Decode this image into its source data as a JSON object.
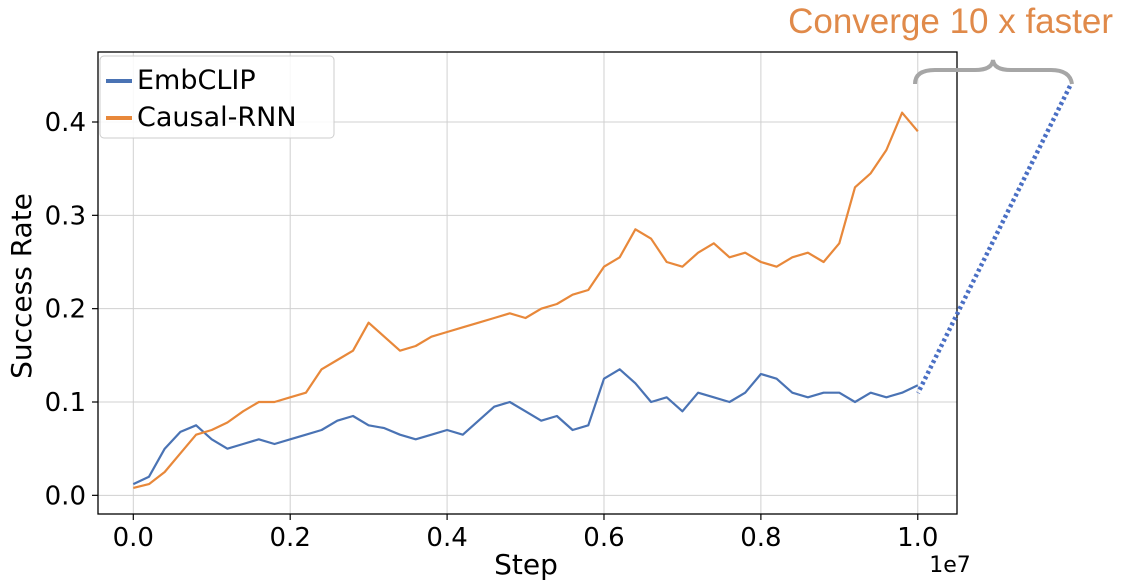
{
  "chart_data": {
    "type": "line",
    "title": "",
    "xlabel": "Step",
    "ylabel": "Success Rate",
    "x_offset_label": "1e7",
    "xlim": [
      -0.045,
      1.05
    ],
    "ylim": [
      -0.02,
      0.475
    ],
    "grid": true,
    "legend_position": "top-left",
    "x_ticks": [
      {
        "value": 0.0,
        "label": "0.0"
      },
      {
        "value": 0.2,
        "label": "0.2"
      },
      {
        "value": 0.4,
        "label": "0.4"
      },
      {
        "value": 0.6,
        "label": "0.6"
      },
      {
        "value": 0.8,
        "label": "0.8"
      },
      {
        "value": 1.0,
        "label": "1.0"
      }
    ],
    "y_ticks": [
      {
        "value": 0.0,
        "label": "0.0"
      },
      {
        "value": 0.1,
        "label": "0.1"
      },
      {
        "value": 0.2,
        "label": "0.2"
      },
      {
        "value": 0.3,
        "label": "0.3"
      },
      {
        "value": 0.4,
        "label": "0.4"
      }
    ],
    "series": [
      {
        "name": "EmbCLIP",
        "color": "#4a73b4",
        "x": [
          0.0,
          0.02,
          0.04,
          0.06,
          0.08,
          0.1,
          0.12,
          0.14,
          0.16,
          0.18,
          0.2,
          0.22,
          0.24,
          0.26,
          0.28,
          0.3,
          0.32,
          0.34,
          0.36,
          0.38,
          0.4,
          0.42,
          0.44,
          0.46,
          0.48,
          0.5,
          0.52,
          0.54,
          0.56,
          0.58,
          0.6,
          0.62,
          0.64,
          0.66,
          0.68,
          0.7,
          0.72,
          0.74,
          0.76,
          0.78,
          0.8,
          0.82,
          0.84,
          0.86,
          0.88,
          0.9,
          0.92,
          0.94,
          0.96,
          0.98,
          1.0
        ],
        "y": [
          0.012,
          0.02,
          0.05,
          0.068,
          0.075,
          0.06,
          0.05,
          0.055,
          0.06,
          0.055,
          0.06,
          0.065,
          0.07,
          0.08,
          0.085,
          0.075,
          0.072,
          0.065,
          0.06,
          0.065,
          0.07,
          0.065,
          0.08,
          0.095,
          0.1,
          0.09,
          0.08,
          0.085,
          0.07,
          0.075,
          0.125,
          0.135,
          0.12,
          0.1,
          0.105,
          0.09,
          0.11,
          0.105,
          0.1,
          0.11,
          0.13,
          0.125,
          0.11,
          0.105,
          0.11,
          0.11,
          0.1,
          0.11,
          0.105,
          0.11,
          0.118
        ]
      },
      {
        "name": "Causal-RNN",
        "color": "#e8883a",
        "x": [
          0.0,
          0.02,
          0.04,
          0.06,
          0.08,
          0.1,
          0.12,
          0.14,
          0.16,
          0.18,
          0.2,
          0.22,
          0.24,
          0.26,
          0.28,
          0.3,
          0.32,
          0.34,
          0.36,
          0.38,
          0.4,
          0.42,
          0.44,
          0.46,
          0.48,
          0.5,
          0.52,
          0.54,
          0.56,
          0.58,
          0.6,
          0.62,
          0.64,
          0.66,
          0.68,
          0.7,
          0.72,
          0.74,
          0.76,
          0.78,
          0.8,
          0.82,
          0.84,
          0.86,
          0.88,
          0.9,
          0.92,
          0.94,
          0.96,
          0.98,
          1.0
        ],
        "y": [
          0.008,
          0.012,
          0.025,
          0.045,
          0.065,
          0.07,
          0.078,
          0.09,
          0.1,
          0.1,
          0.105,
          0.11,
          0.135,
          0.145,
          0.155,
          0.185,
          0.17,
          0.155,
          0.16,
          0.17,
          0.175,
          0.18,
          0.185,
          0.19,
          0.195,
          0.19,
          0.2,
          0.205,
          0.215,
          0.22,
          0.245,
          0.255,
          0.285,
          0.275,
          0.25,
          0.245,
          0.26,
          0.27,
          0.255,
          0.26,
          0.25,
          0.245,
          0.255,
          0.26,
          0.25,
          0.27,
          0.33,
          0.345,
          0.37,
          0.41,
          0.39
        ]
      }
    ],
    "annotation": {
      "text": "Converge 10 x faster",
      "color": "#e08a4a",
      "connector_color": "#4a6fc4",
      "brace_color": "#a6a6a6"
    }
  }
}
